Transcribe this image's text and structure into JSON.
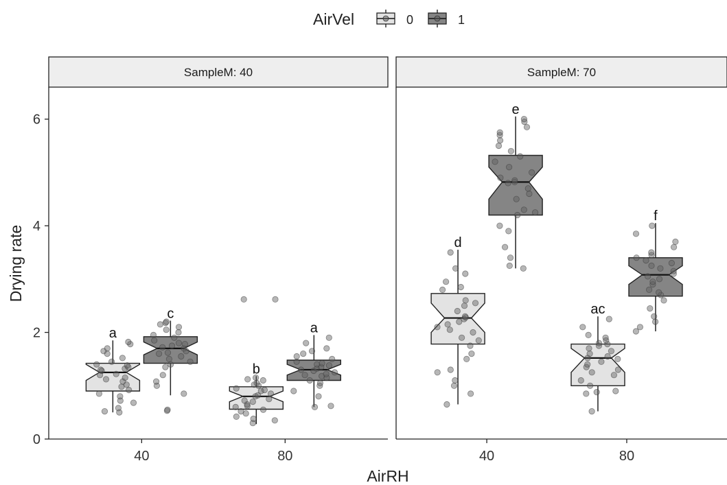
{
  "chart_data": {
    "type": "box",
    "xlabel": "AirRH",
    "ylabel": "Drying rate",
    "ylim": [
      0,
      6.6
    ],
    "yticks": [
      0,
      2,
      4,
      6
    ],
    "categories": [
      "40",
      "80"
    ],
    "facet_var": "SampleM",
    "facets": [
      "SampleM: 40",
      "SampleM: 70"
    ],
    "legend": {
      "title": "AirVel",
      "position": "top",
      "entries": [
        "0",
        "1"
      ]
    },
    "colors": {
      "AirVel_0": "#e3e3e3",
      "AirVel_1": "#858585",
      "strip": "#eeeeee"
    },
    "boxes": [
      {
        "facet": 0,
        "airrh": "40",
        "airvel": "0",
        "q1": 0.9,
        "median": 1.25,
        "q3": 1.42,
        "notch_lo": 1.1,
        "notch_hi": 1.4,
        "wmin": 0.5,
        "wmax": 1.85,
        "label": "a",
        "points": [
          0.5,
          0.52,
          0.58,
          0.68,
          0.72,
          0.8,
          0.85,
          0.92,
          0.98,
          1.02,
          1.08,
          1.12,
          1.15,
          1.2,
          1.22,
          1.28,
          1.3,
          1.32,
          1.35,
          1.38,
          1.4,
          1.45,
          1.52,
          1.6,
          1.65,
          1.7,
          1.78,
          1.82
        ]
      },
      {
        "facet": 0,
        "airrh": "40",
        "airvel": "1",
        "q1": 1.42,
        "median": 1.7,
        "q3": 1.92,
        "notch_lo": 1.58,
        "notch_hi": 1.82,
        "wmin": 0.82,
        "wmax": 2.22,
        "label": "c",
        "points": [
          0.53,
          0.55,
          0.85,
          1.0,
          1.08,
          1.2,
          1.35,
          1.4,
          1.45,
          1.5,
          1.55,
          1.6,
          1.62,
          1.65,
          1.7,
          1.72,
          1.75,
          1.78,
          1.8,
          1.85,
          1.9,
          1.95,
          2.0,
          2.05,
          2.1,
          2.15,
          2.18,
          2.2
        ]
      },
      {
        "facet": 0,
        "airrh": "80",
        "airvel": "0",
        "q1": 0.56,
        "median": 0.8,
        "q3": 0.98,
        "notch_lo": 0.7,
        "notch_hi": 0.9,
        "wmin": 0.28,
        "wmax": 1.18,
        "label": "b",
        "points": [
          0.3,
          0.35,
          0.38,
          0.42,
          0.48,
          0.52,
          0.55,
          0.6,
          0.62,
          0.65,
          0.7,
          0.72,
          0.75,
          0.8,
          0.82,
          0.85,
          0.9,
          0.92,
          0.95,
          1.0,
          1.02,
          1.05,
          1.1,
          1.12,
          1.15,
          2.62,
          2.62
        ]
      },
      {
        "facet": 0,
        "airrh": "80",
        "airvel": "1",
        "q1": 1.1,
        "median": 1.3,
        "q3": 1.48,
        "notch_lo": 1.2,
        "notch_hi": 1.4,
        "wmin": 0.6,
        "wmax": 1.95,
        "label": "a",
        "points": [
          0.6,
          0.62,
          0.8,
          0.9,
          1.0,
          1.05,
          1.1,
          1.15,
          1.18,
          1.2,
          1.22,
          1.25,
          1.28,
          1.3,
          1.32,
          1.35,
          1.38,
          1.4,
          1.42,
          1.45,
          1.5,
          1.55,
          1.6,
          1.65,
          1.7,
          1.8,
          1.9
        ]
      },
      {
        "facet": 1,
        "airrh": "40",
        "airvel": "0",
        "q1": 1.78,
        "median": 2.27,
        "q3": 2.73,
        "notch_lo": 2.0,
        "notch_hi": 2.55,
        "wmin": 0.65,
        "wmax": 3.55,
        "label": "d",
        "points": [
          0.65,
          0.85,
          1.0,
          1.1,
          1.25,
          1.3,
          1.5,
          1.6,
          1.75,
          1.85,
          1.9,
          2.0,
          2.05,
          2.1,
          2.15,
          2.2,
          2.25,
          2.28,
          2.3,
          2.4,
          2.5,
          2.55,
          2.6,
          2.8,
          2.85,
          2.95,
          3.1,
          3.2,
          3.5
        ]
      },
      {
        "facet": 1,
        "airrh": "40",
        "airvel": "1",
        "q1": 4.2,
        "median": 4.82,
        "q3": 5.32,
        "notch_lo": 4.5,
        "notch_hi": 5.1,
        "wmin": 3.2,
        "wmax": 6.05,
        "label": "e",
        "points": [
          3.2,
          3.25,
          3.4,
          3.6,
          3.9,
          4.0,
          4.2,
          4.25,
          4.3,
          4.5,
          4.6,
          4.7,
          4.8,
          4.82,
          4.85,
          4.9,
          5.0,
          5.1,
          5.2,
          5.3,
          5.4,
          5.5,
          5.6,
          5.7,
          5.75,
          5.85,
          5.95,
          6.0
        ]
      },
      {
        "facet": 1,
        "airrh": "80",
        "airvel": "0",
        "q1": 1.0,
        "median": 1.52,
        "q3": 1.78,
        "notch_lo": 1.25,
        "notch_hi": 1.7,
        "wmin": 0.52,
        "wmax": 2.3,
        "label": "ac",
        "points": [
          0.52,
          0.85,
          0.88,
          0.9,
          1.0,
          1.1,
          1.2,
          1.25,
          1.3,
          1.35,
          1.4,
          1.45,
          1.5,
          1.52,
          1.55,
          1.6,
          1.65,
          1.7,
          1.75,
          1.78,
          1.8,
          1.85,
          1.9,
          1.95,
          2.1,
          2.25
        ]
      },
      {
        "facet": 1,
        "airrh": "80",
        "airvel": "1",
        "q1": 2.68,
        "median": 3.08,
        "q3": 3.4,
        "notch_lo": 2.9,
        "notch_hi": 3.25,
        "wmin": 2.02,
        "wmax": 4.05,
        "label": "f",
        "points": [
          2.02,
          2.1,
          2.2,
          2.3,
          2.45,
          2.6,
          2.7,
          2.75,
          2.8,
          2.9,
          2.95,
          3.0,
          3.05,
          3.1,
          3.15,
          3.2,
          3.25,
          3.3,
          3.35,
          3.4,
          3.45,
          3.5,
          3.6,
          3.7,
          3.85,
          4.0
        ]
      }
    ]
  }
}
